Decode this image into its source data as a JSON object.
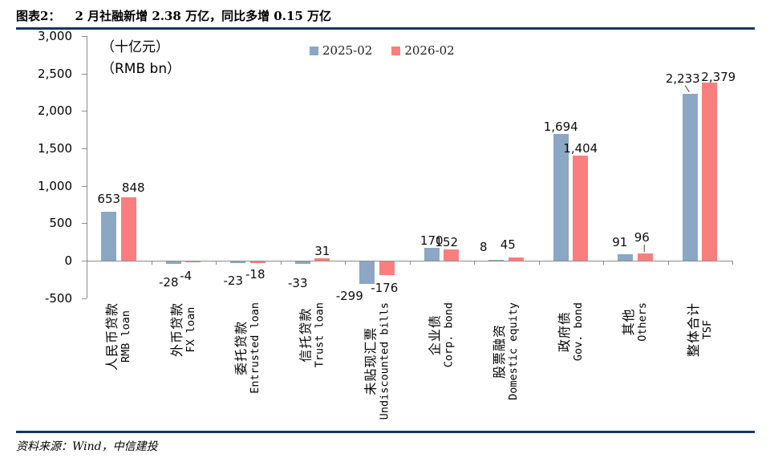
{
  "header": {
    "tag": "图表2：",
    "title": "2 月社融新增 2.38 万亿，同比多增 0.15 万亿"
  },
  "footer": {
    "source": "资料来源：Wind，中信建投"
  },
  "chart_data": {
    "type": "bar",
    "title": "2 月社融新增 2.38 万亿，同比多增 0.15 万亿",
    "unit_labels": [
      "（十亿元）",
      "（RMB bn）"
    ],
    "categories": [
      {
        "cn": "人民币贷款",
        "en": "RMB loan"
      },
      {
        "cn": "外币贷款",
        "en": "FX loan"
      },
      {
        "cn": "委托贷款",
        "en": "Entrusted loan"
      },
      {
        "cn": "信托贷款",
        "en": "Trust loan"
      },
      {
        "cn": "未贴现汇票",
        "en": "Undiscounted bills"
      },
      {
        "cn": "企业债",
        "en": "Corp. bond"
      },
      {
        "cn": "股票融资",
        "en": "Domestic equity"
      },
      {
        "cn": "政府债",
        "en": "Gov. bond"
      },
      {
        "cn": "其他",
        "en": "Others"
      },
      {
        "cn": "整体合计",
        "en": "TSF"
      }
    ],
    "series": [
      {
        "name": "2025-02",
        "color": "#8CA7C3",
        "values": [
          653,
          -28,
          -23,
          -33,
          -299,
          170,
          8,
          1694,
          91,
          2233
        ]
      },
      {
        "name": "2026-02",
        "color": "#FB7E7E",
        "values": [
          848,
          -4,
          -18,
          31,
          -176,
          152,
          45,
          1404,
          96,
          2379
        ]
      }
    ],
    "ylabel": "",
    "xlabel": "",
    "ylim": [
      -500,
      3000
    ],
    "ytick_step": 500,
    "grid": false,
    "legend_position": "top-center",
    "value_labels": true
  },
  "colors": {
    "rule": "#17375D",
    "axis": "#8c8c8c",
    "series_blue": "#8CA7C3",
    "series_red": "#FB7E7E",
    "text": "#000000"
  }
}
